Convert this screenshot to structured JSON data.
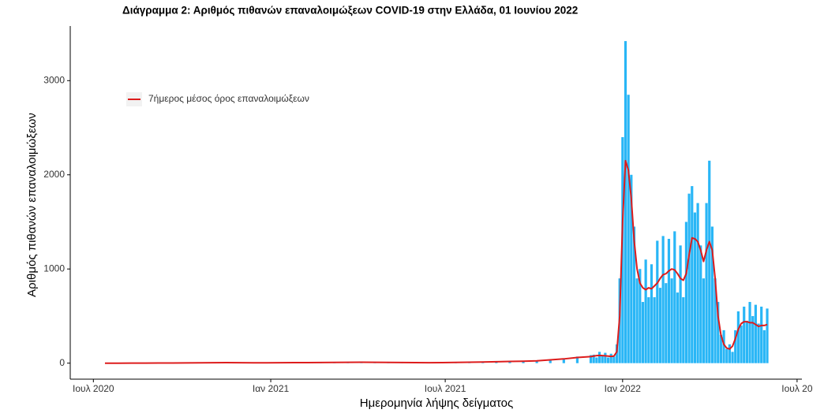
{
  "chart_data": {
    "type": "combo",
    "title": "Διάγραμμα 2: Αριθμός πιθανών επαναλοιμώξεων COVID-19 στην Ελλάδα, 01 Ιουνίου 2022",
    "x_label": "Ημερομηνία λήψης δείγματος",
    "y_label": "Αριθμός πιθανών επαναλοιμώξεων",
    "xlim": [
      "2020-06-07",
      "2022-07-06"
    ],
    "xticks": [
      {
        "value": "2020-07-01",
        "label": "Ιουλ 2020"
      },
      {
        "value": "2021-01-01",
        "label": "Ιαν 2021"
      },
      {
        "value": "2021-07-01",
        "label": "Ιουλ 2021"
      },
      {
        "value": "2022-01-01",
        "label": "Ιαν 2022"
      },
      {
        "value": "2022-07-01",
        "label": "Ιουλ 20"
      }
    ],
    "ylim": [
      -170,
      3580
    ],
    "yticks": [
      0,
      1000,
      2000,
      3000
    ],
    "legend": "top-left",
    "x": [
      "2020-07-13",
      "2020-07-27",
      "2020-08-10",
      "2020-08-24",
      "2020-09-07",
      "2020-09-21",
      "2020-10-05",
      "2020-10-19",
      "2020-11-02",
      "2020-11-16",
      "2020-11-30",
      "2020-12-14",
      "2020-12-28",
      "2021-01-11",
      "2021-01-25",
      "2021-02-08",
      "2021-02-22",
      "2021-03-08",
      "2021-03-22",
      "2021-04-05",
      "2021-04-19",
      "2021-05-03",
      "2021-05-17",
      "2021-05-31",
      "2021-06-14",
      "2021-06-28",
      "2021-07-12",
      "2021-07-26",
      "2021-08-09",
      "2021-08-23",
      "2021-09-06",
      "2021-09-20",
      "2021-10-04",
      "2021-10-18",
      "2021-11-01",
      "2021-11-15",
      "2021-11-29",
      "2021-12-02",
      "2021-12-05",
      "2021-12-08",
      "2021-12-11",
      "2021-12-14",
      "2021-12-17",
      "2021-12-20",
      "2021-12-23",
      "2021-12-26",
      "2021-12-29",
      "2022-01-01",
      "2022-01-04",
      "2022-01-07",
      "2022-01-10",
      "2022-01-13",
      "2022-01-16",
      "2022-01-19",
      "2022-01-22",
      "2022-01-25",
      "2022-01-28",
      "2022-01-31",
      "2022-02-03",
      "2022-02-06",
      "2022-02-09",
      "2022-02-12",
      "2022-02-15",
      "2022-02-18",
      "2022-02-21",
      "2022-02-24",
      "2022-02-27",
      "2022-03-02",
      "2022-03-05",
      "2022-03-08",
      "2022-03-11",
      "2022-03-14",
      "2022-03-17",
      "2022-03-20",
      "2022-03-23",
      "2022-03-26",
      "2022-03-29",
      "2022-04-01",
      "2022-04-04",
      "2022-04-07",
      "2022-04-10",
      "2022-04-13",
      "2022-04-16",
      "2022-04-19",
      "2022-04-22",
      "2022-04-25",
      "2022-04-28",
      "2022-05-01",
      "2022-05-04",
      "2022-05-07",
      "2022-05-10",
      "2022-05-13",
      "2022-05-16",
      "2022-05-19",
      "2022-05-22",
      "2022-05-25",
      "2022-05-28",
      "2022-05-31"
    ],
    "series": [
      {
        "type": "bar",
        "color": "#29b6f6",
        "values": [
          0,
          0,
          1,
          2,
          2,
          3,
          3,
          5,
          6,
          7,
          6,
          5,
          4,
          6,
          7,
          6,
          8,
          9,
          10,
          12,
          10,
          8,
          8,
          6,
          5,
          7,
          9,
          12,
          14,
          18,
          20,
          24,
          30,
          40,
          50,
          70,
          85,
          90,
          60,
          120,
          80,
          110,
          60,
          100,
          70,
          200,
          900,
          2400,
          3420,
          2850,
          2000,
          1450,
          900,
          1000,
          650,
          1100,
          700,
          1050,
          700,
          1300,
          800,
          1350,
          850,
          1320,
          900,
          1400,
          750,
          1250,
          700,
          1500,
          1800,
          1880,
          1600,
          1700,
          1250,
          900,
          1700,
          2150,
          1450,
          900,
          650,
          300,
          350,
          150,
          200,
          120,
          350,
          550,
          400,
          600,
          450,
          650,
          500,
          620,
          420,
          600,
          350,
          580
        ]
      },
      {
        "type": "line",
        "name": "7ήμερος μέσος όρος επαναλοιμώξεων",
        "color": "#dd1c1c",
        "values": [
          0,
          0,
          1,
          1,
          2,
          2,
          3,
          4,
          5,
          6,
          5,
          4,
          4,
          5,
          6,
          6,
          7,
          8,
          9,
          10,
          9,
          8,
          7,
          6,
          5,
          6,
          8,
          10,
          12,
          15,
          18,
          20,
          25,
          35,
          45,
          60,
          70,
          75,
          80,
          82,
          80,
          78,
          75,
          72,
          75,
          120,
          500,
          1500,
          2150,
          2050,
          1750,
          1300,
          1000,
          850,
          800,
          780,
          800,
          790,
          820,
          850,
          900,
          940,
          950,
          980,
          1000,
          990,
          950,
          900,
          880,
          950,
          1150,
          1330,
          1320,
          1290,
          1200,
          1080,
          1200,
          1290,
          1200,
          900,
          500,
          300,
          200,
          160,
          150,
          180,
          260,
          360,
          420,
          440,
          440,
          430,
          430,
          410,
          390,
          400,
          400,
          410
        ]
      }
    ]
  }
}
